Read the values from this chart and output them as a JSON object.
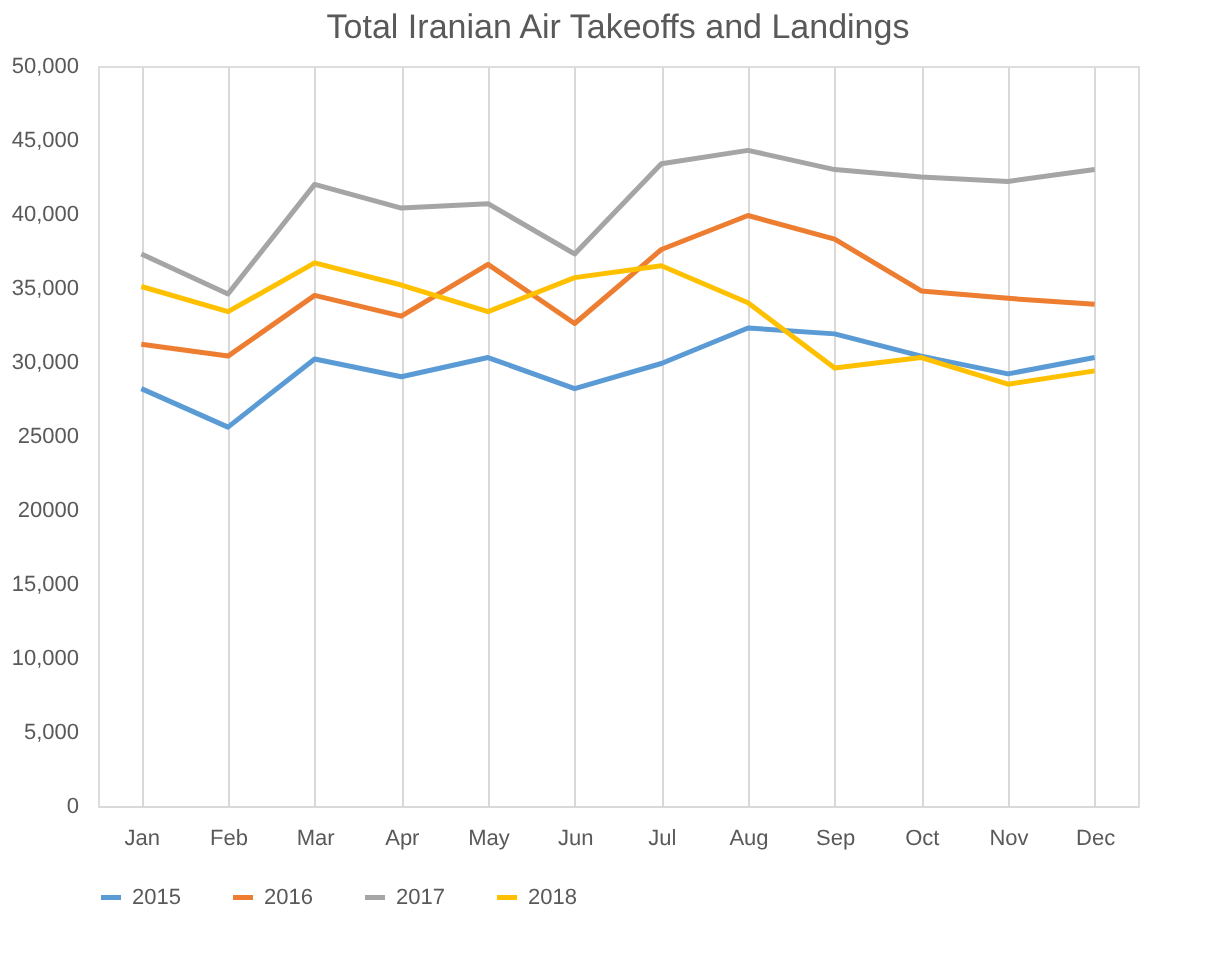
{
  "chart_data": {
    "type": "line",
    "title": "Total Iranian Air Takeoffs and Landings",
    "categories": [
      "Jan",
      "Feb",
      "Mar",
      "Apr",
      "May",
      "Jun",
      "Jul",
      "Aug",
      "Sep",
      "Oct",
      "Nov",
      "Dec"
    ],
    "series": [
      {
        "name": "2015",
        "color": "#5b9bd5",
        "values": [
          28200,
          25600,
          30200,
          29000,
          30300,
          28200,
          29900,
          32300,
          31900,
          30400,
          29200,
          30300
        ]
      },
      {
        "name": "2016",
        "color": "#ed7d31",
        "values": [
          31200,
          30400,
          34500,
          33100,
          36600,
          32600,
          37600,
          39900,
          38300,
          34800,
          34300,
          33900
        ]
      },
      {
        "name": "2017",
        "color": "#a5a5a5",
        "values": [
          37300,
          34600,
          42000,
          40400,
          40700,
          37300,
          43400,
          44300,
          43000,
          42500,
          42200,
          43000
        ]
      },
      {
        "name": "2018",
        "color": "#ffc000",
        "values": [
          35100,
          33400,
          36700,
          35200,
          33400,
          35700,
          36500,
          34000,
          29600,
          30300,
          28500,
          29400
        ]
      }
    ],
    "ylim": [
      0,
      50000
    ],
    "yticks": [
      {
        "value": 0,
        "label": "0"
      },
      {
        "value": 5000,
        "label": "5,000"
      },
      {
        "value": 10000,
        "label": "10,000"
      },
      {
        "value": 15000,
        "label": "15,000"
      },
      {
        "value": 20000,
        "label": "20000"
      },
      {
        "value": 25000,
        "label": "25000"
      },
      {
        "value": 30000,
        "label": "30,000"
      },
      {
        "value": 35000,
        "label": "35,000"
      },
      {
        "value": 40000,
        "label": "40,000"
      },
      {
        "value": 45000,
        "label": "45,000"
      },
      {
        "value": 50000,
        "label": "50,000"
      }
    ],
    "grid": "x",
    "legend": "bottom",
    "marker": "none",
    "line_style": "solid"
  }
}
